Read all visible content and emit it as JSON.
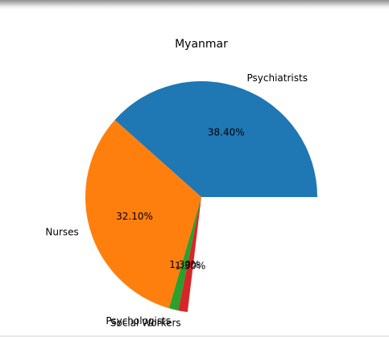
{
  "chart_data": {
    "type": "pie",
    "title": "Myanmar",
    "labels": [
      "Psychiatrists",
      "Nurses",
      "Psychologists",
      "Social Workers"
    ],
    "values": [
      38.4,
      32.1,
      1.3,
      1.3
    ],
    "autopct": [
      "38.40%",
      "32.10%",
      "1.30%",
      "1.30%"
    ],
    "colors": [
      "#1f77b4",
      "#ff7f0e",
      "#2ca02c",
      "#d62728"
    ],
    "start_angle": 0,
    "counterclock": true
  }
}
